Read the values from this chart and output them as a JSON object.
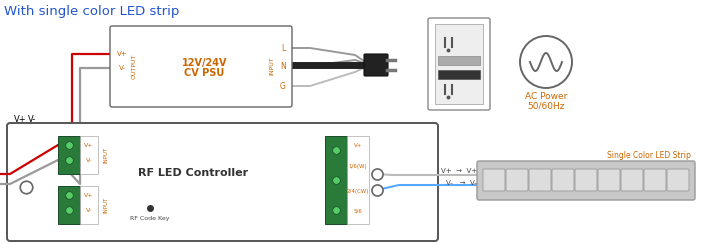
{
  "title": "With single color LED strip",
  "title_color": "#2255cc",
  "title_fontsize": 9.5,
  "bg_color": "#ffffff",
  "psu_label1": "12V/24V",
  "psu_label2": "CV PSU",
  "psu_output_label": "OUTPUT",
  "psu_input_label": "INPUT",
  "psu_vplus": "V+",
  "psu_vminus": "V-",
  "psu_L": "L",
  "psu_N": "N",
  "psu_G": "G",
  "ac_label1": "AC Power",
  "ac_label2": "50/60Hz",
  "ac_color": "#cc6600",
  "controller_label": "RF LED Controller",
  "controller_input": "INPUT",
  "rf_label": "RF Code Key",
  "strip_label": "Single Color LED Strip",
  "strip_label_color": "#cc6600",
  "orange_text": "#cc6600",
  "wire_red": "#cc0000",
  "wire_gray": "#999999",
  "wire_blue": "#55aaff",
  "wire_white": "#cccccc",
  "box_edge": "#666666",
  "green_terminal": "#2a7a3a",
  "dark_green_edge": "#1a4a2a"
}
